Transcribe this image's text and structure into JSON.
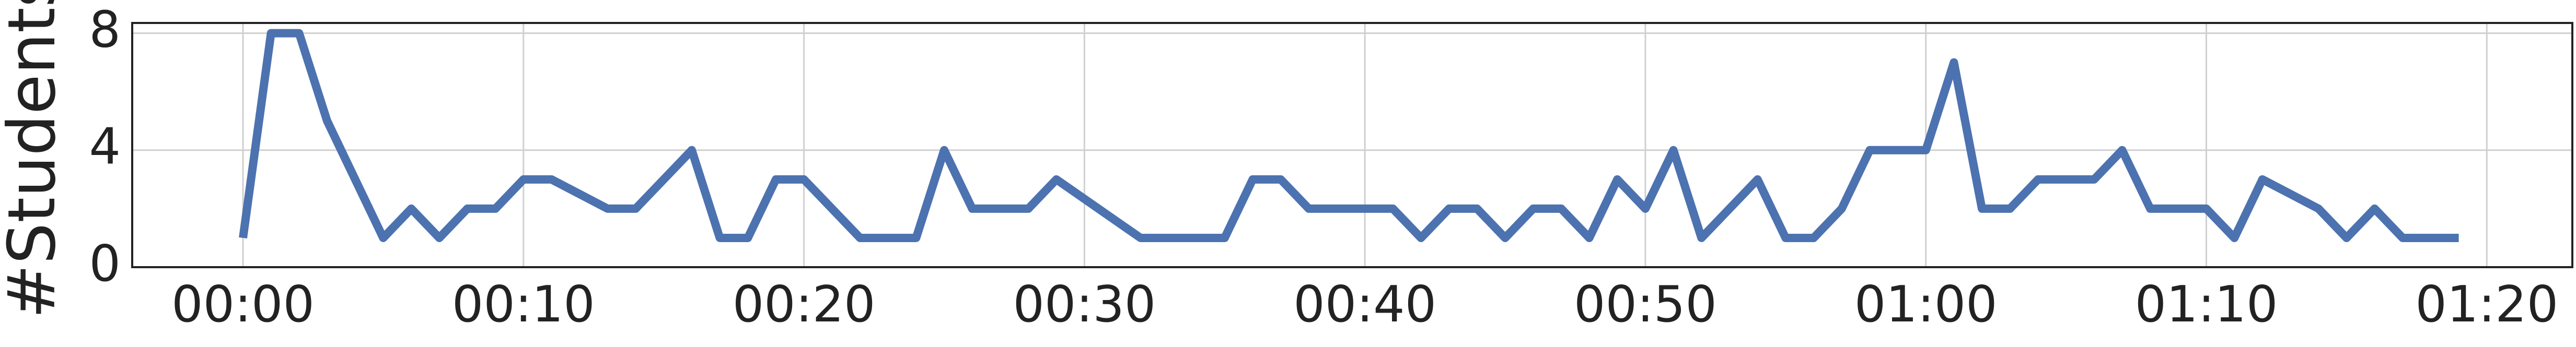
{
  "chart_data": {
    "type": "line",
    "ylabel": "#Students",
    "x": [
      0,
      1,
      2,
      3,
      5,
      6,
      7,
      8,
      9,
      10,
      11,
      13,
      14,
      16,
      17,
      18,
      19,
      20,
      22,
      24,
      25,
      26,
      28,
      29,
      32,
      35,
      36,
      37,
      38,
      41,
      42,
      43,
      44,
      45,
      46,
      47,
      48,
      49,
      50,
      51,
      52,
      54,
      55,
      56,
      57,
      58,
      60,
      61,
      62,
      63,
      64,
      66,
      67,
      68,
      70,
      71,
      72,
      74,
      75,
      76,
      77,
      79
    ],
    "series": [
      {
        "color": "#4c72b0",
        "values": [
          1,
          8,
          8,
          5,
          1,
          2,
          1,
          2,
          2,
          3,
          3,
          2,
          2,
          4,
          1,
          1,
          3,
          3,
          1,
          1,
          4,
          2,
          2,
          3,
          1,
          1,
          3,
          3,
          2,
          2,
          1,
          2,
          2,
          1,
          2,
          2,
          1,
          3,
          2,
          4,
          1,
          3,
          1,
          1,
          2,
          4,
          4,
          7,
          2,
          2,
          3,
          3,
          4,
          2,
          2,
          1,
          3,
          2,
          1,
          2,
          1,
          1
        ]
      }
    ],
    "xlim": [
      -3.95,
      83.05
    ],
    "xticks": [
      {
        "value": 0,
        "label": "00:00"
      },
      {
        "value": 10,
        "label": "00:10"
      },
      {
        "value": 20,
        "label": "00:20"
      },
      {
        "value": 30,
        "label": "00:30"
      },
      {
        "value": 40,
        "label": "00:40"
      },
      {
        "value": 50,
        "label": "00:50"
      },
      {
        "value": 60,
        "label": "01:00"
      },
      {
        "value": 70,
        "label": "01:10"
      },
      {
        "value": 80,
        "label": "01:20"
      }
    ],
    "ylim": [
      0,
      8.35
    ],
    "yticks": [
      0,
      4,
      8
    ],
    "grid": true
  }
}
